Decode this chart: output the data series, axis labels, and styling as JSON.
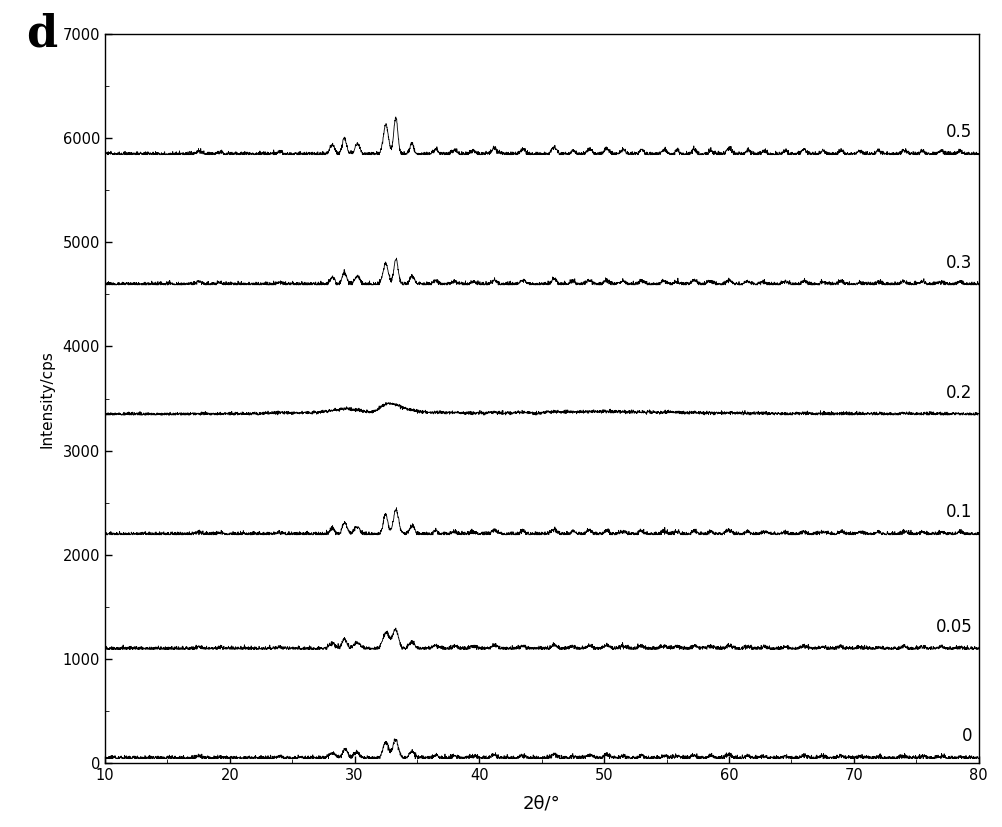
{
  "title_label": "d",
  "xlabel": "2θ/°",
  "ylabel": "Intensity/cps",
  "xlim": [
    10,
    80
  ],
  "ylim": [
    0,
    7000
  ],
  "yticks": [
    0,
    1000,
    2000,
    3000,
    4000,
    5000,
    6000,
    7000
  ],
  "xticks": [
    10,
    20,
    30,
    40,
    50,
    60,
    70,
    80
  ],
  "series_labels": [
    "0",
    "0.05",
    "0.1",
    "0.2",
    "0.3",
    "0.5"
  ],
  "offsets": [
    50,
    1100,
    2200,
    3350,
    4600,
    5850
  ],
  "background_color": "#ffffff",
  "line_color": "#000000",
  "peak_positions": [
    17.5,
    19.2,
    24.0,
    28.2,
    29.2,
    30.2,
    32.5,
    33.3,
    34.6,
    36.5,
    38.0,
    39.5,
    41.2,
    43.5,
    46.0,
    47.5,
    48.8,
    50.2,
    51.5,
    53.0,
    54.8,
    55.8,
    57.2,
    58.5,
    60.0,
    61.5,
    62.8,
    64.5,
    66.0,
    67.5,
    69.0,
    70.5,
    72.0,
    74.0,
    75.5,
    77.0,
    78.5
  ],
  "peak_heights": [
    55,
    35,
    45,
    160,
    280,
    180,
    500,
    600,
    200,
    90,
    70,
    60,
    100,
    80,
    120,
    70,
    90,
    100,
    70,
    80,
    75,
    65,
    85,
    70,
    100,
    65,
    55,
    60,
    70,
    55,
    65,
    55,
    50,
    65,
    55,
    55,
    50
  ],
  "noise_level": 12,
  "seed": 42
}
